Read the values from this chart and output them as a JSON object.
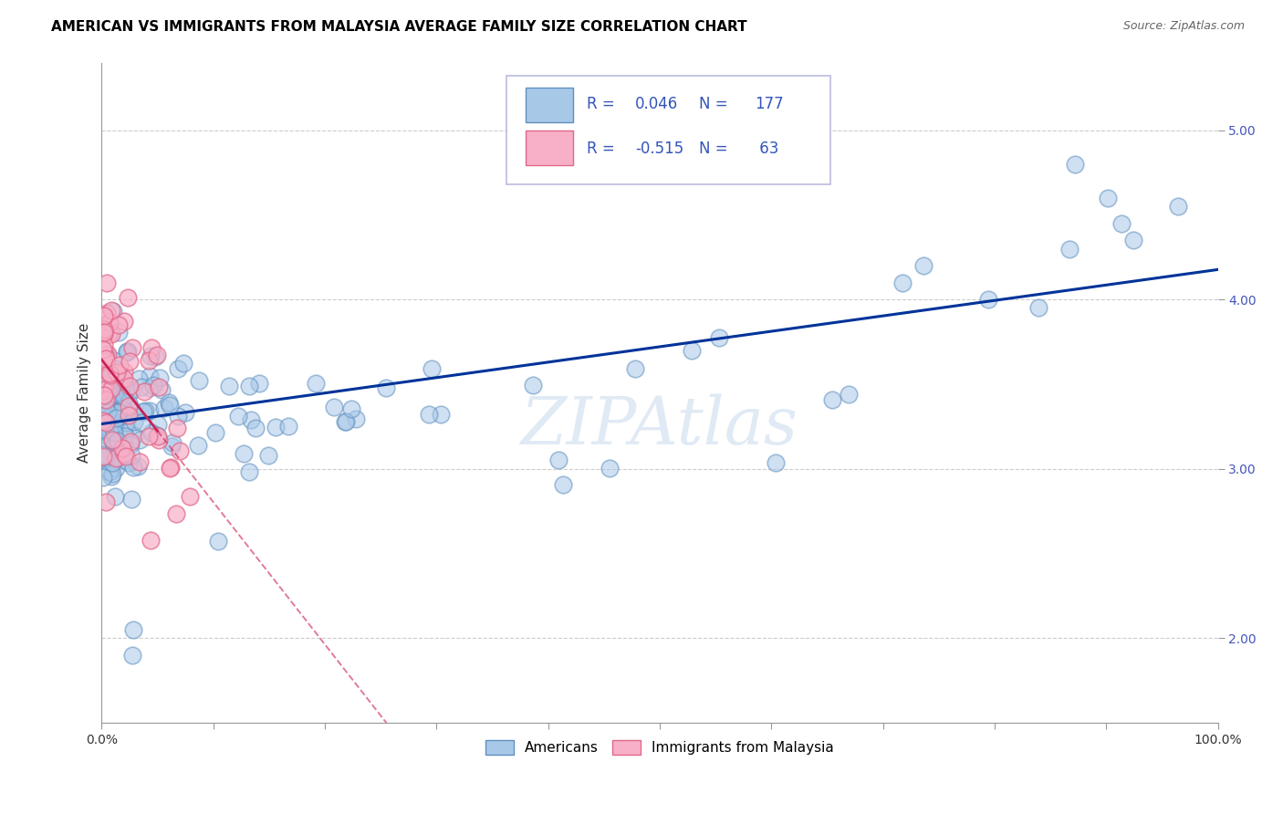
{
  "title": "AMERICAN VS IMMIGRANTS FROM MALAYSIA AVERAGE FAMILY SIZE CORRELATION CHART",
  "source": "Source: ZipAtlas.com",
  "ylabel": "Average Family Size",
  "xlim": [
    0,
    1.0
  ],
  "ylim": [
    1.5,
    5.4
  ],
  "yticks": [
    2.0,
    3.0,
    4.0,
    5.0
  ],
  "xtick_positions": [
    0.0,
    0.1,
    0.2,
    0.3,
    0.4,
    0.5,
    0.6,
    0.7,
    0.8,
    0.9,
    1.0
  ],
  "xtick_labels_show": [
    "0.0%",
    "",
    "",
    "",
    "",
    "",
    "",
    "",
    "",
    "",
    "100.0%"
  ],
  "blue_R": 0.046,
  "blue_N": 177,
  "pink_R": -0.515,
  "pink_N": 63,
  "watermark": "ZIPAtlas",
  "bg_color": "#ffffff",
  "scatter_blue_facecolor": "#a8c8e8",
  "scatter_blue_edge": "#6090c0",
  "scatter_pink_facecolor": "#f8b0c8",
  "scatter_pink_edge": "#e06888",
  "line_blue_color": "#003399",
  "line_pink_color": "#cc2255",
  "grid_color": "#cccccc",
  "title_color": "#000000",
  "ylabel_color": "#333333",
  "tick_color_right": "#4455bb",
  "tick_color_x": "#333333",
  "legend_text_color": "#3355bb",
  "title_fontsize": 11,
  "label_fontsize": 11,
  "tick_fontsize": 10,
  "source_fontsize": 9,
  "legend_fontsize": 12
}
